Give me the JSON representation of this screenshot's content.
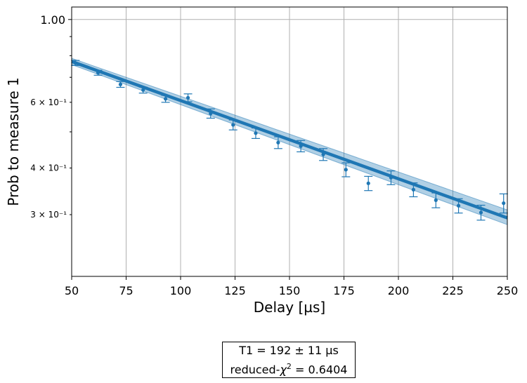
{
  "chart_data": {
    "type": "scatter",
    "title": "",
    "xlabel": "Delay [µs]",
    "ylabel": "Prob to measure 1",
    "xlim": [
      50,
      250
    ],
    "ylim": [
      0.205,
      1.08
    ],
    "yscale": "log",
    "grid": true,
    "x_ticks": [
      50,
      75,
      100,
      125,
      150,
      175,
      200,
      225,
      250
    ],
    "x_tick_labels": [
      "50",
      "75",
      "100",
      "125",
      "150",
      "175",
      "200",
      "225",
      "250"
    ],
    "y_major_ticks": [
      1.0
    ],
    "y_major_tick_labels": [
      "1.00"
    ],
    "y_minor_ticks": [
      0.3,
      0.4,
      0.6
    ],
    "y_minor_tick_labels": [
      "3 × 10⁻¹",
      "4 × 10⁻¹",
      "6 × 10⁻¹"
    ],
    "y_minor_unlabeled_ticks": [
      0.5,
      0.7,
      0.8,
      0.9
    ],
    "colors": {
      "series": "#1f77b4",
      "band": "#1f77b4",
      "grid": "#b0b0b0"
    },
    "series": [
      {
        "kind": "data_with_errorbars",
        "x": [
          51.7,
          62.1,
          72.4,
          82.8,
          93.1,
          103.4,
          113.8,
          124.1,
          134.5,
          144.8,
          155.2,
          165.5,
          175.9,
          186.2,
          196.6,
          206.9,
          217.2,
          227.6,
          237.9,
          248.3
        ],
        "y": [
          0.765,
          0.72,
          0.67,
          0.647,
          0.613,
          0.617,
          0.56,
          0.522,
          0.496,
          0.468,
          0.458,
          0.435,
          0.396,
          0.364,
          0.377,
          0.35,
          0.328,
          0.317,
          0.304,
          0.322
        ],
        "yerr": [
          0.012,
          0.011,
          0.012,
          0.012,
          0.013,
          0.015,
          0.016,
          0.016,
          0.016,
          0.017,
          0.016,
          0.016,
          0.017,
          0.016,
          0.016,
          0.015,
          0.015,
          0.014,
          0.014,
          0.019
        ]
      },
      {
        "kind": "fit",
        "model": "exponential_decay",
        "x": [
          50,
          250
        ],
        "y": [
          0.772,
          0.294
        ],
        "band_upper": [
          0.787,
          0.309
        ],
        "band_lower": [
          0.757,
          0.282
        ]
      }
    ],
    "annotations": {
      "t1_label": "T1 =   192 ±  11 µs",
      "chi_prefix": "reduced-",
      "chi_symbol": "χ",
      "chi_sup": "2",
      "chi_value": " =  0.6404"
    }
  }
}
